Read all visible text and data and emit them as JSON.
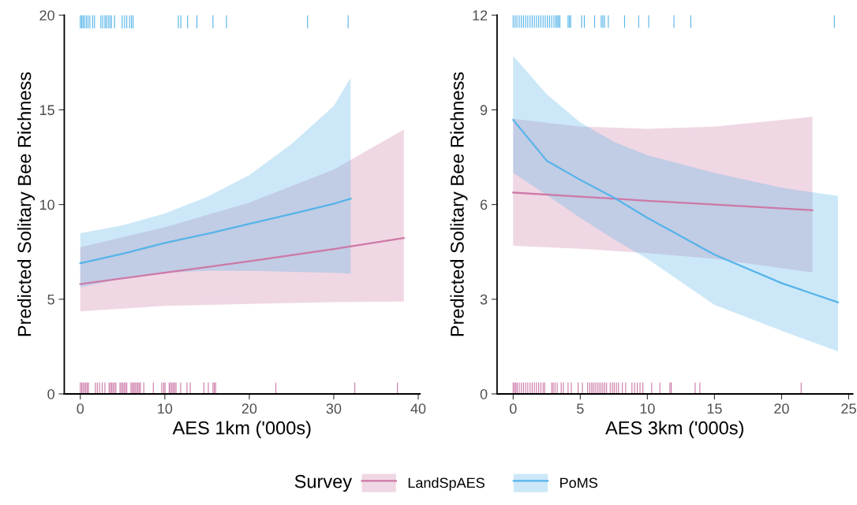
{
  "chart_data": [
    {
      "type": "line",
      "xlabel": "AES 1km ('000s)",
      "ylabel": "Predicted Solitary Bee Richness",
      "xlim": [
        -1.9,
        40.2
      ],
      "ylim": [
        0,
        20
      ],
      "xticks": [
        0,
        10,
        20,
        30,
        40
      ],
      "yticks": [
        0,
        5,
        10,
        15,
        20
      ],
      "grid": false,
      "legend": "bottom",
      "legend_title": "Survey",
      "series": [
        {
          "name": "LandSpAES",
          "color": "#cc79a7",
          "x": [
            0,
            10,
            20,
            30,
            38.3
          ],
          "values": [
            5.8,
            6.4,
            7.0,
            7.65,
            8.23
          ],
          "lower": [
            4.36,
            4.65,
            4.75,
            4.85,
            4.88
          ],
          "upper": [
            7.75,
            8.8,
            10.1,
            11.85,
            13.96
          ]
        },
        {
          "name": "PoMS",
          "color": "#56b4e9",
          "x": [
            0,
            5,
            10,
            15,
            20,
            25,
            30,
            32
          ],
          "values": [
            6.9,
            7.4,
            7.97,
            8.45,
            8.98,
            9.5,
            10.04,
            10.31
          ],
          "lower": [
            5.63,
            6.1,
            6.4,
            6.5,
            6.5,
            6.45,
            6.4,
            6.35
          ],
          "upper": [
            8.49,
            8.9,
            9.53,
            10.4,
            11.55,
            13.2,
            15.2,
            16.7
          ]
        },
        {
          "type": "bar",
          "color": "#cc79a7",
          "x": [
            0,
            0.16,
            0.32,
            0.49,
            0.65,
            0.81,
            0.97,
            1.78,
            2.01,
            2.27,
            2.59,
            2.91,
            3.4,
            3.56,
            3.72,
            3.88,
            4.05,
            4.21,
            4.69,
            4.85,
            5.02,
            5.18,
            5.34,
            5.5,
            5.99,
            6.15,
            6.31,
            6.47,
            6.63,
            6.8,
            6.96,
            7.12,
            7.51,
            8.64,
            9.64,
            9.87,
            10.03,
            10.52,
            10.68,
            10.84,
            11.0,
            11.17,
            11.33,
            11.88,
            12.62,
            13.01,
            14.63,
            15.15,
            15.7,
            15.86,
            16.02,
            23.14,
            32.49,
            37.54
          ],
          "values": [
            0.6,
            0.6,
            0.6,
            0.6,
            0.6,
            0.6,
            0.6,
            0.6,
            0.6,
            0.6,
            0.6,
            0.6,
            0.6,
            0.6,
            0.6,
            0.6,
            0.6,
            0.6,
            0.6,
            0.6,
            0.6,
            0.6,
            0.6,
            0.6,
            0.6,
            0.6,
            0.6,
            0.6,
            0.6,
            0.6,
            0.6,
            0.6,
            0.6,
            0.6,
            0.6,
            0.6,
            0.6,
            0.6,
            0.6,
            0.6,
            0.6,
            0.6,
            0.6,
            0.6,
            0.6,
            0.6,
            0.6,
            0.6,
            0.6,
            0.6,
            0.6,
            0.6,
            0.6,
            0.6
          ]
        },
        {
          "type": "bar",
          "color": "#56b4e9",
          "x": [
            0,
            0.16,
            0.32,
            0.49,
            0.71,
            0.91,
            1.13,
            1.46,
            1.68,
            2.43,
            2.65,
            2.91,
            3.07,
            3.3,
            3.5,
            3.69,
            4.05,
            4.95,
            5.24,
            5.5,
            5.83,
            6.05,
            6.25,
            11.6,
            11.9,
            12.7,
            13.8,
            15.7,
            17.3,
            26.9,
            31.7
          ],
          "values": [
            0.7,
            0.7,
            0.7,
            0.7,
            0.7,
            0.7,
            0.7,
            0.7,
            0.7,
            0.7,
            0.7,
            0.7,
            0.7,
            0.7,
            0.7,
            0.7,
            0.7,
            0.7,
            0.7,
            0.7,
            0.7,
            0.7,
            0.7,
            0.7,
            0.7,
            0.7,
            0.7,
            0.7,
            0.7,
            0.7,
            0.7
          ],
          "base": [
            19.3,
            19.3,
            19.3,
            19.3,
            19.3,
            19.3,
            19.3,
            19.3,
            19.3,
            19.3,
            19.3,
            19.3,
            19.3,
            19.3,
            19.3,
            19.3,
            19.3,
            19.3,
            19.3,
            19.3,
            19.3,
            19.3,
            19.3,
            19.3,
            19.3,
            19.3,
            19.3,
            19.3,
            19.3,
            19.3,
            19.3
          ]
        }
      ]
    },
    {
      "type": "line",
      "xlabel": "AES 3km ('000s)",
      "ylabel": "Predicted Solitary Bee Richness",
      "xlim": [
        -1.2,
        25.3
      ],
      "ylim": [
        0,
        12
      ],
      "xticks": [
        0,
        5,
        10,
        15,
        20,
        25
      ],
      "yticks": [
        0,
        3,
        6,
        9,
        12
      ],
      "grid": false,
      "series": [
        {
          "name": "LandSpAES",
          "color": "#cc79a7",
          "x": [
            0,
            5,
            10,
            15,
            22.3
          ],
          "values": [
            6.38,
            6.25,
            6.12,
            6.0,
            5.82
          ],
          "lower": [
            4.69,
            4.6,
            4.46,
            4.28,
            3.85
          ],
          "upper": [
            8.72,
            8.47,
            8.4,
            8.47,
            8.78
          ]
        },
        {
          "name": "PoMS",
          "color": "#56b4e9",
          "x": [
            0,
            2.5,
            5,
            7.5,
            10,
            15,
            20,
            24.2
          ],
          "values": [
            8.68,
            7.39,
            6.78,
            6.22,
            5.58,
            4.41,
            3.51,
            2.9
          ],
          "lower": [
            7.0,
            6.3,
            5.58,
            4.9,
            4.28,
            2.82,
            2.0,
            1.35
          ],
          "upper": [
            10.71,
            9.5,
            8.6,
            7.99,
            7.56,
            7.0,
            6.53,
            6.27
          ]
        },
        {
          "type": "bar",
          "color": "#cc79a7",
          "x": [
            0,
            0.1,
            0.2,
            0.3,
            0.45,
            0.61,
            0.77,
            0.93,
            1.09,
            1.26,
            1.42,
            1.58,
            1.74,
            1.9,
            2.06,
            2.23,
            2.35,
            2.87,
            2.98,
            3.12,
            3.28,
            3.58,
            3.74,
            4.09,
            4.33,
            4.84,
            5.16,
            5.55,
            5.71,
            5.85,
            5.97,
            6.11,
            6.26,
            6.4,
            6.54,
            6.68,
            6.82,
            6.96,
            7.23,
            7.39,
            7.53,
            7.69,
            7.85,
            8.14,
            8.38,
            8.85,
            9.05,
            9.25,
            9.45,
            9.66,
            10.32,
            10.93,
            11.68,
            11.78,
            13.56,
            13.91,
            21.46
          ],
          "values": [
            0.36,
            0.36,
            0.36,
            0.36,
            0.36,
            0.36,
            0.36,
            0.36,
            0.36,
            0.36,
            0.36,
            0.36,
            0.36,
            0.36,
            0.36,
            0.36,
            0.36,
            0.36,
            0.36,
            0.36,
            0.36,
            0.36,
            0.36,
            0.36,
            0.36,
            0.36,
            0.36,
            0.36,
            0.36,
            0.36,
            0.36,
            0.36,
            0.36,
            0.36,
            0.36,
            0.36,
            0.36,
            0.36,
            0.36,
            0.36,
            0.36,
            0.36,
            0.36,
            0.36,
            0.36,
            0.36,
            0.36,
            0.36,
            0.36,
            0.36,
            0.36,
            0.36,
            0.36,
            0.36,
            0.36,
            0.36,
            0.36
          ]
        },
        {
          "type": "bar",
          "color": "#56b4e9",
          "x": [
            0,
            0.14,
            0.28,
            0.45,
            0.61,
            0.77,
            0.93,
            1.09,
            1.26,
            1.42,
            1.58,
            1.74,
            1.9,
            2.06,
            2.23,
            2.39,
            2.55,
            2.71,
            2.87,
            3.04,
            3.18,
            3.28,
            3.38,
            3.48,
            4.09,
            4.19,
            4.29,
            5.1,
            5.3,
            6.07,
            6.56,
            6.68,
            6.8,
            7.09,
            8.3,
            9.35,
            10.1,
            11.98,
            13.24,
            23.93
          ],
          "values": [
            0.4,
            0.4,
            0.4,
            0.4,
            0.4,
            0.4,
            0.4,
            0.4,
            0.4,
            0.4,
            0.4,
            0.4,
            0.4,
            0.4,
            0.4,
            0.4,
            0.4,
            0.4,
            0.4,
            0.4,
            0.4,
            0.4,
            0.4,
            0.4,
            0.4,
            0.4,
            0.4,
            0.4,
            0.4,
            0.4,
            0.4,
            0.4,
            0.4,
            0.4,
            0.4,
            0.4,
            0.4,
            0.4,
            0.4,
            0.4
          ],
          "base": [
            11.6,
            11.6,
            11.6,
            11.6,
            11.6,
            11.6,
            11.6,
            11.6,
            11.6,
            11.6,
            11.6,
            11.6,
            11.6,
            11.6,
            11.6,
            11.6,
            11.6,
            11.6,
            11.6,
            11.6,
            11.6,
            11.6,
            11.6,
            11.6,
            11.6,
            11.6,
            11.6,
            11.6,
            11.6,
            11.6,
            11.6,
            11.6,
            11.6,
            11.6,
            11.6,
            11.6,
            11.6,
            11.6,
            11.6,
            11.6
          ]
        }
      ]
    }
  ]
}
